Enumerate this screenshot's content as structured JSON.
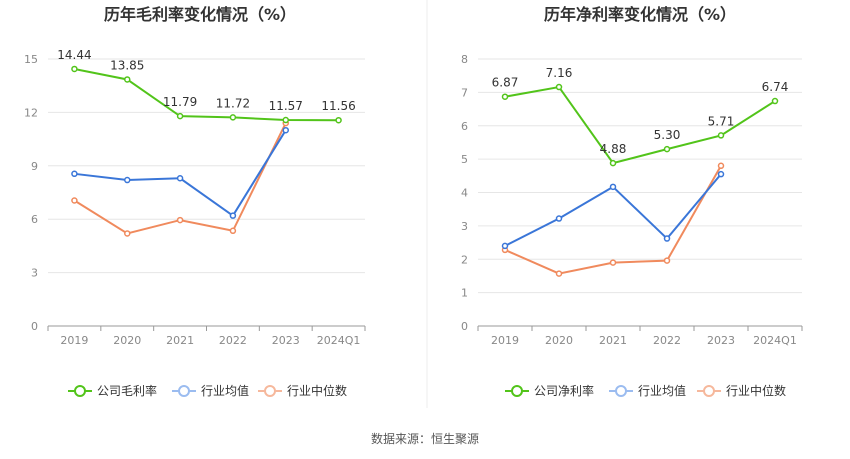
{
  "chart_data": [
    {
      "type": "line",
      "title": "历年毛利率变化情况（%）",
      "categories": [
        "2019",
        "2020",
        "2021",
        "2022",
        "2023",
        "2024Q1"
      ],
      "ylim": [
        0,
        15
      ],
      "yticks": [
        "0",
        "3",
        "6",
        "9",
        "12",
        "15"
      ],
      "grid": true,
      "legend_position": "bottom",
      "series": [
        {
          "name": "公司毛利率",
          "color": "#52c41a",
          "values": [
            14.44,
            13.85,
            11.79,
            11.72,
            11.57,
            11.56
          ],
          "labels": [
            "14.44",
            "13.85",
            "11.79",
            "11.72",
            "11.57",
            "11.56"
          ]
        },
        {
          "name": "行业均值",
          "color": "#3a76d8",
          "values": [
            8.55,
            8.2,
            8.3,
            6.2,
            11.0,
            null
          ]
        },
        {
          "name": "行业中位数",
          "color": "#f08a5d",
          "values": [
            7.05,
            5.2,
            5.95,
            5.35,
            11.4,
            null
          ]
        }
      ]
    },
    {
      "type": "line",
      "title": "历年净利率变化情况（%）",
      "categories": [
        "2019",
        "2020",
        "2021",
        "2022",
        "2023",
        "2024Q1"
      ],
      "ylim": [
        0,
        8
      ],
      "yticks": [
        "0",
        "1",
        "2",
        "3",
        "4",
        "5",
        "6",
        "7",
        "8"
      ],
      "grid": true,
      "legend_position": "bottom",
      "series": [
        {
          "name": "公司净利率",
          "color": "#52c41a",
          "values": [
            6.87,
            7.16,
            4.88,
            5.3,
            5.71,
            6.74
          ],
          "labels": [
            "6.87",
            "7.16",
            "4.88",
            "5.30",
            "5.71",
            "6.74"
          ]
        },
        {
          "name": "行业均值",
          "color": "#3a76d8",
          "values": [
            2.4,
            3.22,
            4.17,
            2.62,
            4.55,
            null
          ]
        },
        {
          "name": "行业中位数",
          "color": "#f08a5d",
          "values": [
            2.28,
            1.57,
            1.9,
            1.96,
            4.8,
            null
          ]
        }
      ]
    }
  ],
  "footer": {
    "source": "数据来源：恒生聚源"
  },
  "colors": {
    "company": "#52c41a",
    "industry_avg": "#3a76d8",
    "industry_median": "#f08a5d",
    "legend_avg_light": "#9bbcf0",
    "legend_median_light": "#f6b89c"
  }
}
